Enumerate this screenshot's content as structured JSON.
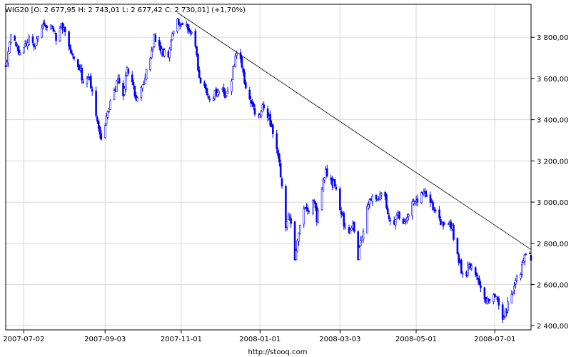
{
  "chart_data": {
    "type": "candlestick",
    "title": "WIG20 [O: 2 677,95  H: 2 743,01  L: 2 677,42  C: 2 730,01] (+1,70%)",
    "footer": "http://stooq.com",
    "ylim": [
      2380,
      3960
    ],
    "xlim": [
      "2007-06-18",
      "2008-07-29"
    ],
    "grid": true,
    "y_ticks": [
      2400,
      2600,
      2800,
      3000,
      3200,
      3400,
      3600,
      3800
    ],
    "y_tick_labels": [
      "2 400,00",
      "2 600,00",
      "2 800,00",
      "3 000,00",
      "3 200,00",
      "3 400,00",
      "3 600,00",
      "3 800,00"
    ],
    "x_ticks": [
      "2007-07-02",
      "2007-09-03",
      "2007-11-01",
      "2008-01-01",
      "2008-03-03",
      "2008-05-01",
      "2008-07-01"
    ],
    "x_tick_labels": [
      "2007-07-02",
      "2007-09-03",
      "2007-11-01",
      "2008-01-01",
      "2008-03-03",
      "2008-05-01",
      "2008-07-01"
    ],
    "trendline": {
      "from": {
        "x": "2007-10-29",
        "y": 3920
      },
      "to": {
        "x": "2008-07-29",
        "y": 2770
      }
    },
    "series": [
      {
        "colors": {
          "up": "#ffffff",
          "down": "#0000ff",
          "outline": "#0000ff"
        },
        "path": [
          [
            "2007-06-18",
            3650
          ],
          [
            "2007-06-22",
            3820
          ],
          [
            "2007-06-26",
            3760
          ],
          [
            "2007-06-29",
            3720
          ],
          [
            "2007-07-02",
            3760
          ],
          [
            "2007-07-06",
            3790
          ],
          [
            "2007-07-10",
            3760
          ],
          [
            "2007-07-13",
            3820
          ],
          [
            "2007-07-17",
            3870
          ],
          [
            "2007-07-20",
            3830
          ],
          [
            "2007-07-24",
            3850
          ],
          [
            "2007-07-27",
            3800
          ],
          [
            "2007-07-31",
            3860
          ],
          [
            "2007-08-03",
            3820
          ],
          [
            "2007-08-07",
            3740
          ],
          [
            "2007-08-10",
            3700
          ],
          [
            "2007-08-14",
            3660
          ],
          [
            "2007-08-17",
            3580
          ],
          [
            "2007-08-21",
            3620
          ],
          [
            "2007-08-24",
            3520
          ],
          [
            "2007-08-28",
            3400
          ],
          [
            "2007-08-31",
            3310
          ],
          [
            "2007-09-03",
            3380
          ],
          [
            "2007-09-06",
            3450
          ],
          [
            "2007-09-10",
            3540
          ],
          [
            "2007-09-13",
            3600
          ],
          [
            "2007-09-17",
            3520
          ],
          [
            "2007-09-20",
            3640
          ],
          [
            "2007-09-24",
            3600
          ],
          [
            "2007-09-27",
            3480
          ],
          [
            "2007-10-01",
            3540
          ],
          [
            "2007-10-04",
            3610
          ],
          [
            "2007-10-08",
            3680
          ],
          [
            "2007-10-11",
            3800
          ],
          [
            "2007-10-15",
            3760
          ],
          [
            "2007-10-18",
            3720
          ],
          [
            "2007-10-22",
            3720
          ],
          [
            "2007-10-25",
            3830
          ],
          [
            "2007-10-29",
            3880
          ],
          [
            "2007-11-01",
            3870
          ],
          [
            "2007-11-05",
            3850
          ],
          [
            "2007-11-08",
            3840
          ],
          [
            "2007-11-12",
            3760
          ],
          [
            "2007-11-15",
            3600
          ],
          [
            "2007-11-19",
            3560
          ],
          [
            "2007-11-22",
            3500
          ],
          [
            "2007-11-26",
            3520
          ],
          [
            "2007-11-29",
            3540
          ],
          [
            "2007-12-03",
            3560
          ],
          [
            "2007-12-06",
            3500
          ],
          [
            "2007-12-10",
            3600
          ],
          [
            "2007-12-13",
            3720
          ],
          [
            "2007-12-17",
            3700
          ],
          [
            "2007-12-20",
            3580
          ],
          [
            "2007-12-24",
            3520
          ],
          [
            "2007-12-27",
            3450
          ],
          [
            "2007-12-31",
            3420
          ],
          [
            "2008-01-03",
            3480
          ],
          [
            "2008-01-07",
            3420
          ],
          [
            "2008-01-10",
            3360
          ],
          [
            "2008-01-14",
            3260
          ],
          [
            "2008-01-17",
            3140
          ],
          [
            "2008-01-21",
            2870
          ],
          [
            "2008-01-24",
            2940
          ],
          [
            "2008-01-28",
            2700
          ],
          [
            "2008-01-31",
            2860
          ],
          [
            "2008-02-04",
            2980
          ],
          [
            "2008-02-07",
            2940
          ],
          [
            "2008-02-11",
            3020
          ],
          [
            "2008-02-14",
            2920
          ],
          [
            "2008-02-18",
            3080
          ],
          [
            "2008-02-21",
            3140
          ],
          [
            "2008-02-25",
            3100
          ],
          [
            "2008-02-28",
            3080
          ],
          [
            "2008-03-03",
            2980
          ],
          [
            "2008-03-06",
            2900
          ],
          [
            "2008-03-10",
            2850
          ],
          [
            "2008-03-13",
            2880
          ],
          [
            "2008-03-17",
            2740
          ],
          [
            "2008-03-20",
            2840
          ],
          [
            "2008-03-24",
            2960
          ],
          [
            "2008-03-27",
            3020
          ],
          [
            "2008-03-31",
            3000
          ],
          [
            "2008-04-03",
            3060
          ],
          [
            "2008-04-07",
            3020
          ],
          [
            "2008-04-10",
            2920
          ],
          [
            "2008-04-14",
            2900
          ],
          [
            "2008-04-17",
            2940
          ],
          [
            "2008-04-21",
            2880
          ],
          [
            "2008-04-24",
            2940
          ],
          [
            "2008-04-28",
            3000
          ],
          [
            "2008-05-01",
            3000
          ],
          [
            "2008-05-05",
            3060
          ],
          [
            "2008-05-08",
            3040
          ],
          [
            "2008-05-12",
            3000
          ],
          [
            "2008-05-15",
            2950
          ],
          [
            "2008-05-19",
            2910
          ],
          [
            "2008-05-22",
            2880
          ],
          [
            "2008-05-26",
            2900
          ],
          [
            "2008-05-29",
            2870
          ],
          [
            "2008-06-02",
            2740
          ],
          [
            "2008-06-05",
            2670
          ],
          [
            "2008-06-09",
            2660
          ],
          [
            "2008-06-12",
            2700
          ],
          [
            "2008-06-16",
            2640
          ],
          [
            "2008-06-19",
            2600
          ],
          [
            "2008-06-23",
            2540
          ],
          [
            "2008-06-26",
            2500
          ],
          [
            "2008-06-30",
            2560
          ],
          [
            "2008-07-03",
            2520
          ],
          [
            "2008-07-07",
            2420
          ],
          [
            "2008-07-10",
            2480
          ],
          [
            "2008-07-14",
            2560
          ],
          [
            "2008-07-17",
            2620
          ],
          [
            "2008-07-21",
            2660
          ],
          [
            "2008-07-24",
            2740
          ],
          [
            "2008-07-29",
            2730
          ]
        ]
      }
    ]
  }
}
